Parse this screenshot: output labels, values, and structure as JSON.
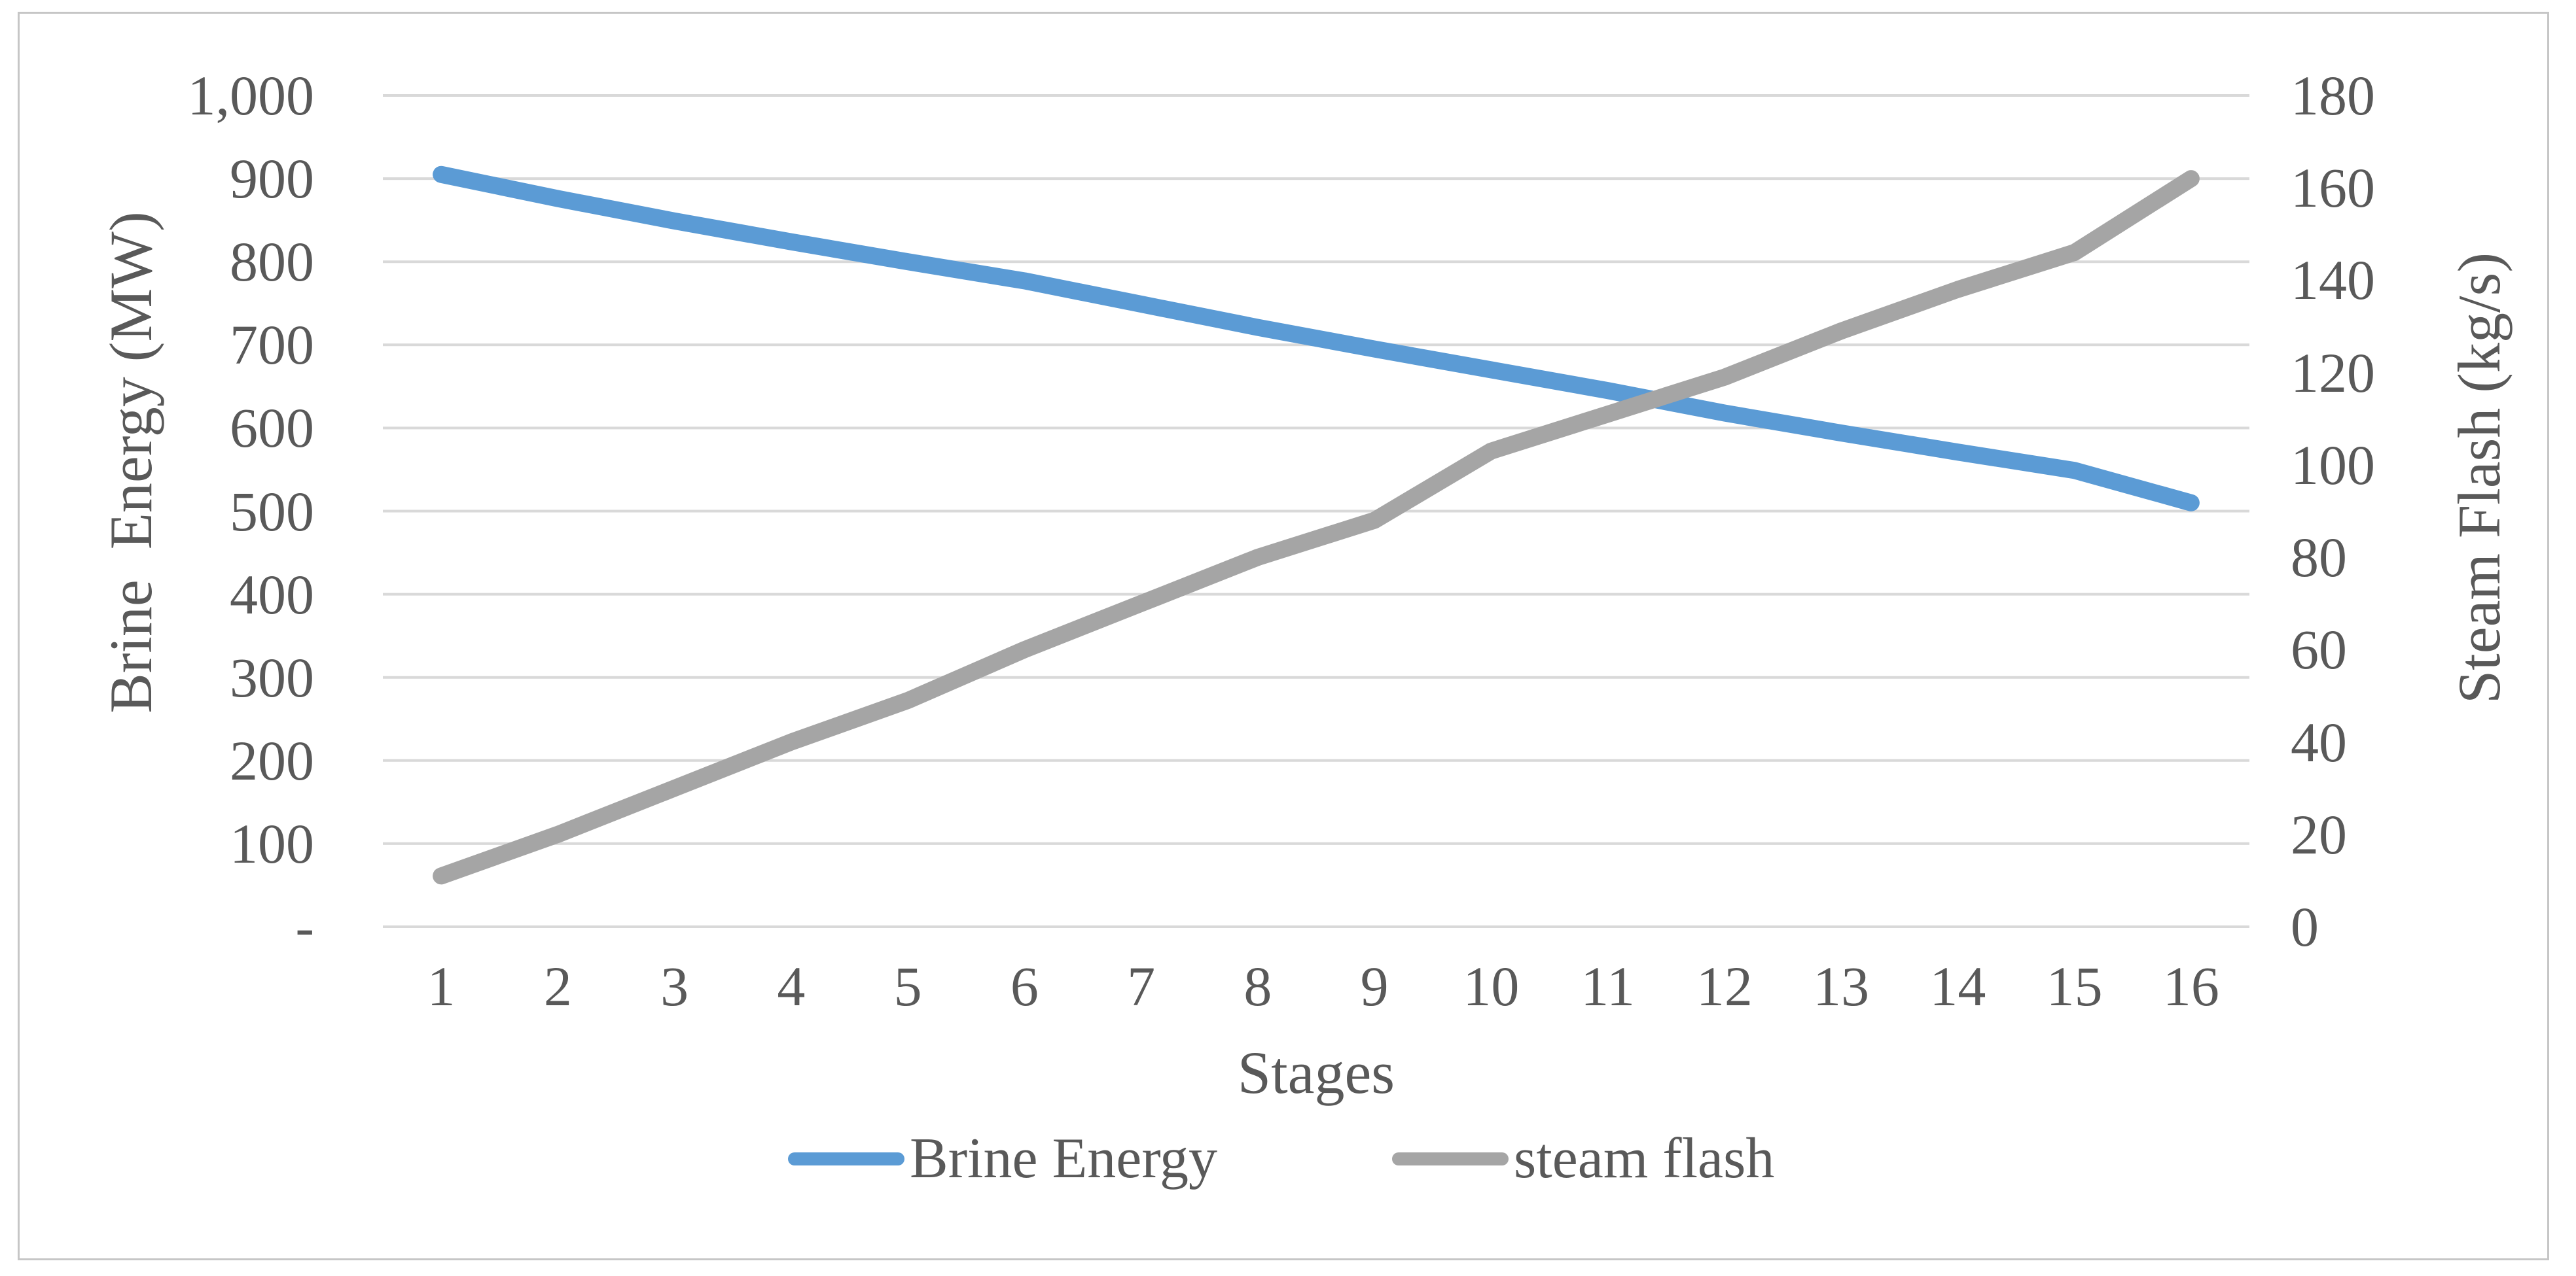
{
  "chart_data": {
    "type": "line",
    "title": "",
    "categories": [
      "1",
      "2",
      "3",
      "4",
      "5",
      "6",
      "7",
      "8",
      "9",
      "10",
      "11",
      "12",
      "13",
      "14",
      "15",
      "16"
    ],
    "xlabel": "Stages",
    "grid": "horizontal",
    "gridline_color": "#d9d9d9",
    "text_color": "#595959",
    "frame_border_color": "#c6c6c6",
    "series": [
      {
        "name": "Brine Energy",
        "axis": "left",
        "color": "#5b9bd5",
        "values": [
          905,
          876,
          849,
          824,
          800,
          777,
          749,
          721,
          695,
          670,
          645,
          618,
          594,
          571,
          549,
          510
        ]
      },
      {
        "name": "steam flash",
        "axis": "right",
        "color": "#a5a5a5",
        "values": [
          11,
          20,
          30,
          40,
          49,
          60,
          70,
          80,
          88,
          103,
          111,
          119,
          129,
          138,
          146,
          162
        ]
      }
    ],
    "left_axis": {
      "title": "Brine  Energy (MW)",
      "min": 0,
      "max": 1000,
      "step": 100,
      "tick_labels": [
        "1,000",
        "900",
        "800",
        "700",
        "600",
        "500",
        "400",
        "300",
        "200",
        "100",
        "-"
      ]
    },
    "right_axis": {
      "title": "Steam Flash (kg/s)",
      "min": 0,
      "max": 180,
      "step": 20,
      "tick_labels": [
        "180",
        "160",
        "140",
        "120",
        "100",
        "80",
        "60",
        "40",
        "20",
        "0"
      ]
    },
    "legend": {
      "position": "bottom",
      "entries": [
        "Brine Energy",
        "steam flash"
      ]
    }
  }
}
